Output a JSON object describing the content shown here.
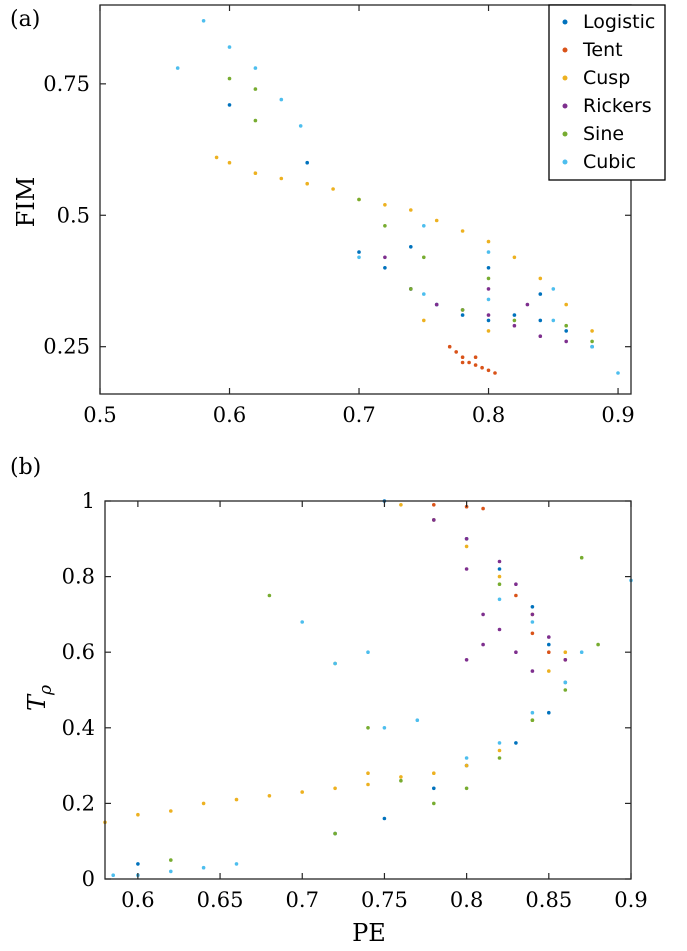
{
  "chart_data": [
    {
      "panel_label": "(a)",
      "type": "scatter",
      "xlabel": "",
      "ylabel": "FIM",
      "xlim": [
        0.5,
        0.91
      ],
      "ylim": [
        0.16,
        0.9
      ],
      "xticks": [
        "0.5",
        "0.6",
        "0.7",
        "0.8",
        "0.9"
      ],
      "yticks": [
        "0.25",
        "0.5",
        "0.75"
      ],
      "legend_position": "top-right",
      "series": [
        {
          "name": "Logistic",
          "color": "#0072BD",
          "points": [
            [
              0.6,
              0.71
            ],
            [
              0.7,
              0.43
            ],
            [
              0.72,
              0.4
            ],
            [
              0.74,
              0.36
            ],
            [
              0.76,
              0.33
            ],
            [
              0.78,
              0.31
            ],
            [
              0.8,
              0.3
            ],
            [
              0.82,
              0.31
            ],
            [
              0.84,
              0.3
            ],
            [
              0.86,
              0.28
            ],
            [
              0.88,
              0.25
            ],
            [
              0.66,
              0.6
            ],
            [
              0.74,
              0.44
            ],
            [
              0.8,
              0.4
            ],
            [
              0.84,
              0.35
            ]
          ]
        },
        {
          "name": "Tent",
          "color": "#D95319",
          "points": [
            [
              0.77,
              0.25
            ],
            [
              0.775,
              0.24
            ],
            [
              0.78,
              0.23
            ],
            [
              0.785,
              0.22
            ],
            [
              0.79,
              0.215
            ],
            [
              0.795,
              0.21
            ],
            [
              0.8,
              0.205
            ],
            [
              0.805,
              0.2
            ],
            [
              0.78,
              0.22
            ],
            [
              0.79,
              0.23
            ]
          ]
        },
        {
          "name": "Cusp",
          "color": "#EDB120",
          "points": [
            [
              0.59,
              0.61
            ],
            [
              0.6,
              0.6
            ],
            [
              0.62,
              0.58
            ],
            [
              0.64,
              0.57
            ],
            [
              0.66,
              0.56
            ],
            [
              0.68,
              0.55
            ],
            [
              0.7,
              0.53
            ],
            [
              0.72,
              0.52
            ],
            [
              0.74,
              0.51
            ],
            [
              0.76,
              0.49
            ],
            [
              0.78,
              0.47
            ],
            [
              0.8,
              0.45
            ],
            [
              0.82,
              0.42
            ],
            [
              0.84,
              0.38
            ],
            [
              0.86,
              0.33
            ],
            [
              0.88,
              0.28
            ],
            [
              0.75,
              0.3
            ],
            [
              0.8,
              0.28
            ]
          ]
        },
        {
          "name": "Rickers",
          "color": "#7E2F8E",
          "points": [
            [
              0.72,
              0.42
            ],
            [
              0.74,
              0.36
            ],
            [
              0.76,
              0.33
            ],
            [
              0.78,
              0.32
            ],
            [
              0.8,
              0.31
            ],
            [
              0.82,
              0.29
            ],
            [
              0.84,
              0.27
            ],
            [
              0.86,
              0.26
            ],
            [
              0.8,
              0.36
            ],
            [
              0.83,
              0.33
            ]
          ]
        },
        {
          "name": "Sine",
          "color": "#77AC30",
          "points": [
            [
              0.6,
              0.76
            ],
            [
              0.62,
              0.74
            ],
            [
              0.62,
              0.68
            ],
            [
              0.7,
              0.53
            ],
            [
              0.72,
              0.48
            ],
            [
              0.74,
              0.36
            ],
            [
              0.78,
              0.32
            ],
            [
              0.82,
              0.3
            ],
            [
              0.86,
              0.29
            ],
            [
              0.88,
              0.26
            ],
            [
              0.75,
              0.42
            ],
            [
              0.8,
              0.38
            ]
          ]
        },
        {
          "name": "Cubic",
          "color": "#4DBEEE",
          "points": [
            [
              0.56,
              0.78
            ],
            [
              0.58,
              0.87
            ],
            [
              0.6,
              0.82
            ],
            [
              0.62,
              0.78
            ],
            [
              0.64,
              0.72
            ],
            [
              0.655,
              0.67
            ],
            [
              0.7,
              0.42
            ],
            [
              0.75,
              0.35
            ],
            [
              0.8,
              0.34
            ],
            [
              0.85,
              0.3
            ],
            [
              0.88,
              0.25
            ],
            [
              0.9,
              0.2
            ],
            [
              0.75,
              0.48
            ],
            [
              0.8,
              0.43
            ],
            [
              0.85,
              0.36
            ]
          ]
        }
      ]
    },
    {
      "panel_label": "(b)",
      "type": "scatter",
      "xlabel": "PE",
      "ylabel": "T",
      "ylabel_subscript": "ρ",
      "xlim": [
        0.58,
        0.9
      ],
      "ylim": [
        0,
        1
      ],
      "xticks": [
        "0.6",
        "0.65",
        "0.7",
        "0.75",
        "0.8",
        "0.85",
        "0.9"
      ],
      "yticks": [
        "0",
        "0.2",
        "0.4",
        "0.6",
        "0.8",
        "1"
      ],
      "series": [
        {
          "name": "Logistic",
          "color": "#0072BD",
          "points": [
            [
              0.6,
              0.04
            ],
            [
              0.75,
              1.0
            ],
            [
              0.78,
              0.95
            ],
            [
              0.8,
              0.9
            ],
            [
              0.82,
              0.82
            ],
            [
              0.84,
              0.72
            ],
            [
              0.85,
              0.62
            ],
            [
              0.86,
              0.52
            ],
            [
              0.85,
              0.44
            ],
            [
              0.83,
              0.36
            ],
            [
              0.8,
              0.3
            ],
            [
              0.78,
              0.24
            ],
            [
              0.75,
              0.16
            ],
            [
              0.72,
              0.12
            ]
          ]
        },
        {
          "name": "Tent",
          "color": "#D95319",
          "points": [
            [
              0.78,
              0.99
            ],
            [
              0.8,
              0.985
            ],
            [
              0.81,
              0.98
            ],
            [
              0.84,
              0.65
            ],
            [
              0.85,
              0.6
            ],
            [
              0.86,
              0.58
            ],
            [
              0.83,
              0.75
            ]
          ]
        },
        {
          "name": "Cusp",
          "color": "#EDB120",
          "points": [
            [
              0.58,
              0.15
            ],
            [
              0.6,
              0.17
            ],
            [
              0.62,
              0.18
            ],
            [
              0.64,
              0.2
            ],
            [
              0.66,
              0.21
            ],
            [
              0.68,
              0.22
            ],
            [
              0.7,
              0.23
            ],
            [
              0.72,
              0.24
            ],
            [
              0.74,
              0.25
            ],
            [
              0.76,
              0.27
            ],
            [
              0.78,
              0.28
            ],
            [
              0.8,
              0.3
            ],
            [
              0.82,
              0.34
            ],
            [
              0.84,
              0.42
            ],
            [
              0.85,
              0.55
            ],
            [
              0.86,
              0.6
            ],
            [
              0.84,
              0.7
            ],
            [
              0.82,
              0.8
            ],
            [
              0.8,
              0.88
            ],
            [
              0.78,
              0.95
            ],
            [
              0.76,
              0.99
            ],
            [
              0.74,
              0.28
            ]
          ]
        },
        {
          "name": "Rickers",
          "color": "#7E2F8E",
          "points": [
            [
              0.78,
              0.95
            ],
            [
              0.8,
              0.9
            ],
            [
              0.82,
              0.84
            ],
            [
              0.83,
              0.78
            ],
            [
              0.84,
              0.7
            ],
            [
              0.85,
              0.64
            ],
            [
              0.86,
              0.58
            ],
            [
              0.84,
              0.55
            ],
            [
              0.83,
              0.6
            ],
            [
              0.82,
              0.66
            ],
            [
              0.81,
              0.62
            ],
            [
              0.8,
              0.58
            ],
            [
              0.81,
              0.7
            ],
            [
              0.8,
              0.82
            ]
          ]
        },
        {
          "name": "Sine",
          "color": "#77AC30",
          "points": [
            [
              0.68,
              0.75
            ],
            [
              0.72,
              0.57
            ],
            [
              0.74,
              0.4
            ],
            [
              0.76,
              0.26
            ],
            [
              0.78,
              0.2
            ],
            [
              0.8,
              0.24
            ],
            [
              0.82,
              0.32
            ],
            [
              0.84,
              0.42
            ],
            [
              0.86,
              0.5
            ],
            [
              0.87,
              0.85
            ],
            [
              0.88,
              0.62
            ],
            [
              0.72,
              0.12
            ],
            [
              0.62,
              0.05
            ],
            [
              0.82,
              0.78
            ]
          ]
        },
        {
          "name": "Cubic",
          "color": "#4DBEEE",
          "points": [
            [
              0.585,
              0.01
            ],
            [
              0.6,
              0.01
            ],
            [
              0.62,
              0.02
            ],
            [
              0.64,
              0.03
            ],
            [
              0.66,
              0.04
            ],
            [
              0.7,
              0.68
            ],
            [
              0.72,
              0.57
            ],
            [
              0.74,
              0.6
            ],
            [
              0.75,
              0.4
            ],
            [
              0.77,
              0.42
            ],
            [
              0.8,
              0.32
            ],
            [
              0.82,
              0.36
            ],
            [
              0.84,
              0.44
            ],
            [
              0.86,
              0.52
            ],
            [
              0.87,
              0.6
            ],
            [
              0.9,
              0.79
            ],
            [
              0.84,
              0.68
            ],
            [
              0.82,
              0.74
            ]
          ]
        }
      ]
    }
  ]
}
